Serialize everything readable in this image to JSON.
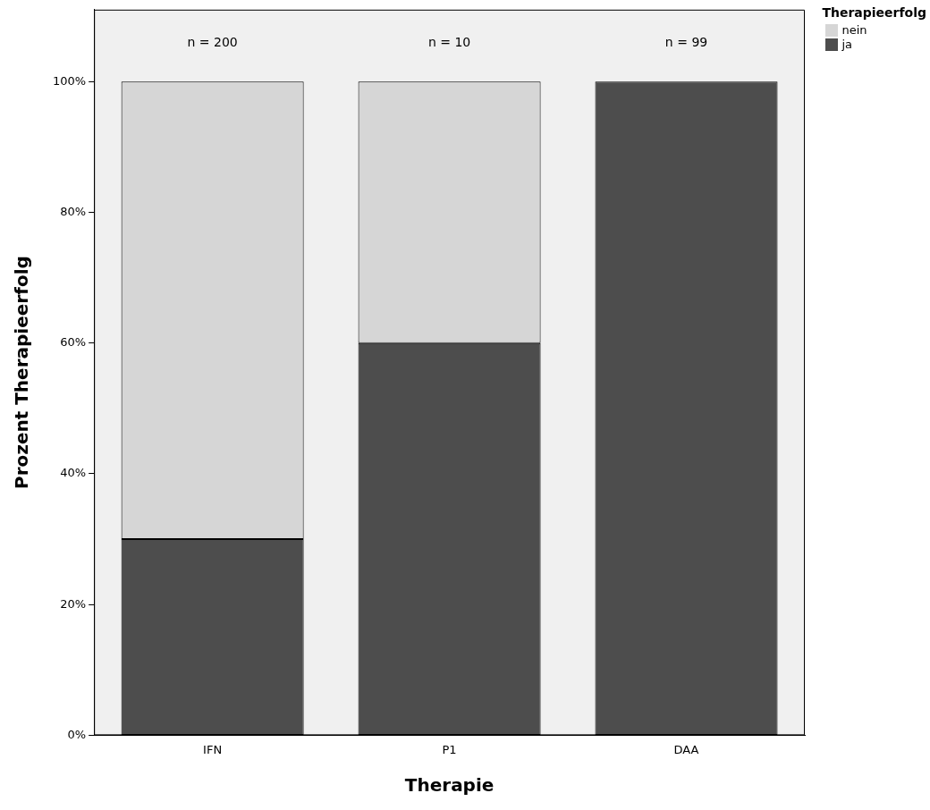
{
  "chart_data": {
    "type": "bar",
    "stacked": true,
    "xlabel": "Therapie",
    "ylabel": "Prozent Therapieerfolg",
    "legend_title": "Therapieerfolg",
    "legend": "top right",
    "grid": false,
    "categories": [
      "IFN",
      "P1",
      "DAA"
    ],
    "series": [
      {
        "name": "ja",
        "color": "#4d4d4d",
        "values": [
          30,
          60,
          100
        ]
      },
      {
        "name": "nein",
        "color": "#d6d6d6",
        "values": [
          70,
          40,
          0
        ]
      }
    ],
    "ylim": [
      0,
      111
    ],
    "yticks": [
      {
        "value": 0,
        "label": "0%"
      },
      {
        "value": 20,
        "label": "20%"
      },
      {
        "value": 40,
        "label": "40%"
      },
      {
        "value": 60,
        "label": "60%"
      },
      {
        "value": 80,
        "label": "80%"
      },
      {
        "value": 100,
        "label": "100%"
      }
    ],
    "annotations": [
      "n = 200",
      "n = 10",
      "n = 99"
    ]
  }
}
